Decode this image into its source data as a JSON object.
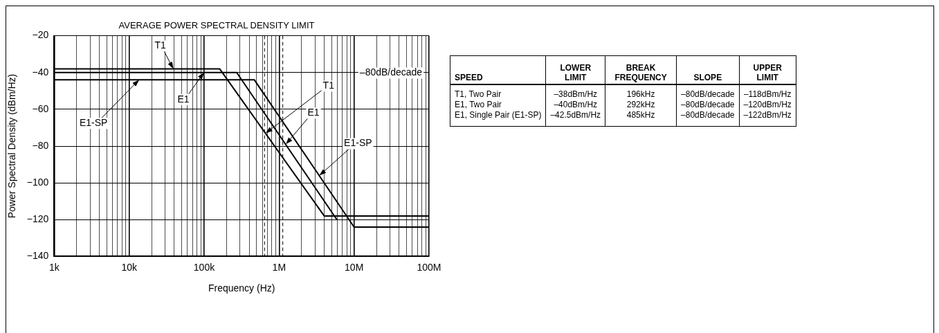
{
  "chart_data": [
    {
      "type": "line",
      "title": "AVERAGE POWER SPECTRAL DENSITY LIMIT",
      "xlabel": "Frequency (Hz)",
      "ylabel": "Power Spectral Density (dBm/Hz)",
      "log": "x",
      "grid": true,
      "legend": false,
      "marker": "none",
      "line_style": "solid",
      "series": [
        {
          "color": "#000000",
          "x": [
            1000,
            161000,
            4000000,
            100000000
          ],
          "values": [
            -38,
            -38,
            -118,
            -118
          ]
        },
        {
          "color": "#000000",
          "x": [
            1000,
            272000,
            5900000
          ],
          "values": [
            -40,
            -40,
            -120
          ]
        },
        {
          "color": "#000000",
          "x": [
            1000,
            468000,
            10000000,
            100000000
          ],
          "values": [
            -44,
            -44,
            -124,
            -124
          ]
        }
      ],
      "xlim": [
        1000,
        100000000
      ],
      "xticks": [
        {
          "value": 1000,
          "label": "1k"
        },
        {
          "value": 2000,
          "label": null
        },
        {
          "value": 3000,
          "label": null
        },
        {
          "value": 4000,
          "label": null
        },
        {
          "value": 5000,
          "label": null
        },
        {
          "value": 6000,
          "label": null
        },
        {
          "value": 7000,
          "label": null
        },
        {
          "value": 8000,
          "label": null
        },
        {
          "value": 9000,
          "label": null
        },
        {
          "value": 10000,
          "label": "10k"
        },
        {
          "value": 20000,
          "label": null
        },
        {
          "value": 30000,
          "label": null
        },
        {
          "value": 40000,
          "label": null
        },
        {
          "value": 50000,
          "label": null
        },
        {
          "value": 60000,
          "label": null
        },
        {
          "value": 70000,
          "label": null
        },
        {
          "value": 80000,
          "label": null
        },
        {
          "value": 90000,
          "label": null
        },
        {
          "value": 100000,
          "label": "100k"
        },
        {
          "value": 200000,
          "label": null
        },
        {
          "value": 300000,
          "label": null
        },
        {
          "value": 400000,
          "label": null
        },
        {
          "value": 500000,
          "label": null
        },
        {
          "value": 600000,
          "label": null
        },
        {
          "value": 700000,
          "label": null
        },
        {
          "value": 800000,
          "label": null
        },
        {
          "value": 900000,
          "label": null
        },
        {
          "value": 1000000,
          "label": "1M"
        },
        {
          "value": 2000000,
          "label": null
        },
        {
          "value": 3000000,
          "label": null
        },
        {
          "value": 4000000,
          "label": null
        },
        {
          "value": 5000000,
          "label": null
        },
        {
          "value": 6000000,
          "label": null
        },
        {
          "value": 7000000,
          "label": null
        },
        {
          "value": 8000000,
          "label": null
        },
        {
          "value": 9000000,
          "label": null
        },
        {
          "value": 10000000,
          "label": "10M"
        },
        {
          "value": 20000000,
          "label": null
        },
        {
          "value": 30000000,
          "label": null
        },
        {
          "value": 40000000,
          "label": null
        },
        {
          "value": 50000000,
          "label": null
        },
        {
          "value": 60000000,
          "label": null
        },
        {
          "value": 70000000,
          "label": null
        },
        {
          "value": 80000000,
          "label": null
        },
        {
          "value": 90000000,
          "label": null
        },
        {
          "value": 100000000,
          "label": "100M"
        }
      ],
      "ylim": [
        -140,
        -20
      ],
      "yticks": [
        {
          "value": -140,
          "label": "−140"
        },
        {
          "value": -120,
          "label": "−120"
        },
        {
          "value": -100,
          "label": "−100"
        },
        {
          "value": -80,
          "label": "−80"
        },
        {
          "value": -60,
          "label": "−60"
        },
        {
          "value": -40,
          "label": "−40"
        },
        {
          "value": -20,
          "label": "−20"
        }
      ],
      "ref_lines": [
        {
          "axis": "x",
          "value": 640000,
          "line_style": "dashed",
          "color": "#000000"
        },
        {
          "axis": "x",
          "value": 1120000,
          "line_style": "dashed",
          "color": "#000000"
        }
      ],
      "annotations": [
        {
          "text": "T1",
          "x": 39000,
          "y": -38
        },
        {
          "text": "E1",
          "x": 100000,
          "y": -40
        },
        {
          "text": "E1-SP",
          "x": 13600,
          "y": -44
        },
        "–80dB/decade",
        {
          "text": "T1",
          "x": 660000,
          "y": -73
        },
        {
          "text": "E1",
          "x": 1230000,
          "y": -79
        },
        {
          "text": "E1-SP",
          "x": 3430000,
          "y": -96
        }
      ]
    },
    {
      "type": "other",
      "categories": [
        "SPEED",
        "LOWER LIMIT",
        "BREAK FREQUENCY",
        "SLOPE",
        "UPPER LIMIT"
      ],
      "annotations": [
        "T1, Two Pair",
        "–38dBm/Hz",
        "196kHz",
        "–80dB/decade",
        "–118dBm/Hz",
        "E1, Two Pair",
        "–40dBm/Hz",
        "292kHz",
        "–80dB/decade",
        "–120dBm/Hz",
        "E1, Single Pair (E1-SP)",
        "–42.5dBm/Hz",
        "485kHz",
        "–80dB/decade",
        "–122dBm/Hz"
      ]
    }
  ]
}
